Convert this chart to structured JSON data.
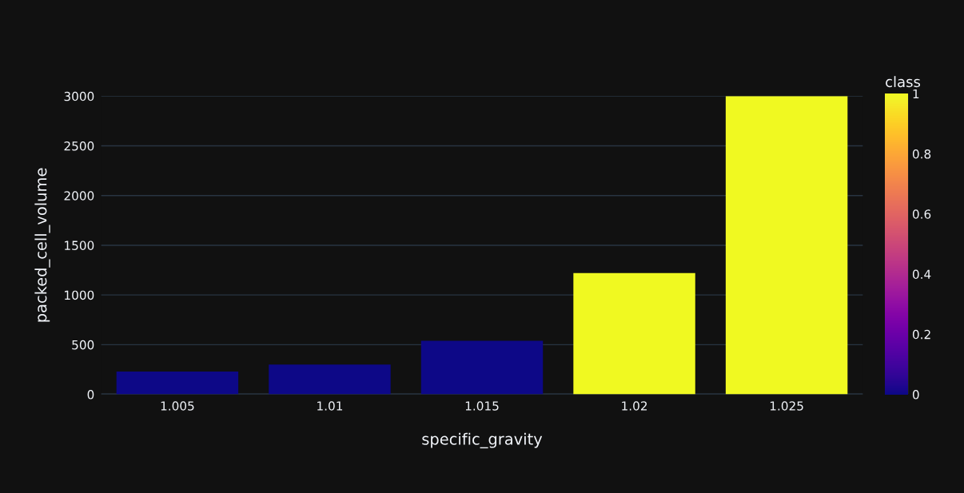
{
  "chart_data": {
    "type": "bar",
    "xlabel": "specific_gravity",
    "ylabel": "packed_cell_volume",
    "clabel": "class",
    "categories": [
      "1.005",
      "1.01",
      "1.015",
      "1.02",
      "1.025"
    ],
    "values": [
      230,
      300,
      540,
      1220,
      3000
    ],
    "cvalues": [
      0,
      0,
      0,
      1,
      1
    ],
    "clim": [
      0,
      1
    ],
    "cticks": [
      0,
      0.2,
      0.4,
      0.6,
      0.8,
      1
    ],
    "ylim": [
      0,
      3000
    ],
    "yticks": [
      0,
      500,
      1000,
      1500,
      2000,
      2500,
      3000
    ],
    "grid": "y",
    "legend": false
  }
}
